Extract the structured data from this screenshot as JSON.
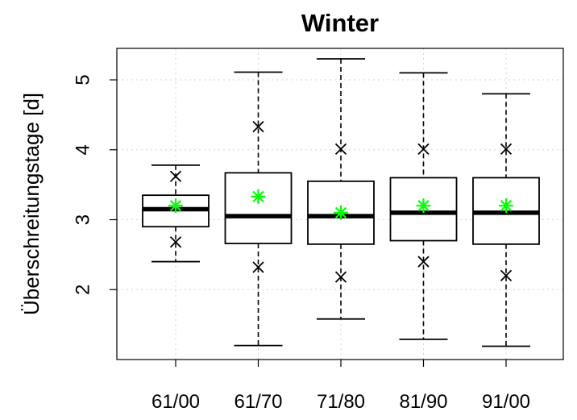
{
  "chart_data": {
    "type": "boxplot",
    "title": "Winter",
    "xlabel": "",
    "ylabel": "Überschreitungstage [d]",
    "categories": [
      "61/00",
      "61/70",
      "71/80",
      "81/90",
      "91/00"
    ],
    "ylim": [
      1.0,
      5.45
    ],
    "yticks": [
      2,
      3,
      4,
      5
    ],
    "grid": true,
    "boxes": [
      {
        "category": "61/00",
        "whisker_low": 2.4,
        "q1": 2.9,
        "median": 3.15,
        "q3": 3.35,
        "whisker_high": 3.78,
        "p_low": 2.68,
        "p_high": 3.62,
        "mean": 3.2
      },
      {
        "category": "61/70",
        "whisker_low": 1.2,
        "q1": 2.66,
        "median": 3.05,
        "q3": 3.67,
        "whisker_high": 5.11,
        "p_low": 2.32,
        "p_high": 4.33,
        "mean": 3.33
      },
      {
        "category": "71/80",
        "whisker_low": 1.58,
        "q1": 2.65,
        "median": 3.05,
        "q3": 3.55,
        "whisker_high": 5.3,
        "p_low": 2.18,
        "p_high": 4.01,
        "mean": 3.1
      },
      {
        "category": "81/90",
        "whisker_low": 1.29,
        "q1": 2.7,
        "median": 3.1,
        "q3": 3.6,
        "whisker_high": 5.1,
        "p_low": 2.4,
        "p_high": 4.01,
        "mean": 3.2
      },
      {
        "category": "91/00",
        "whisker_low": 1.19,
        "q1": 2.65,
        "median": 3.1,
        "q3": 3.6,
        "whisker_high": 4.8,
        "p_low": 2.2,
        "p_high": 4.01,
        "mean": 3.2
      }
    ],
    "colors": {
      "box": "#000000",
      "mean_marker": "#00ff00",
      "grid": "#d3d3d3",
      "axis": "#000000"
    }
  }
}
